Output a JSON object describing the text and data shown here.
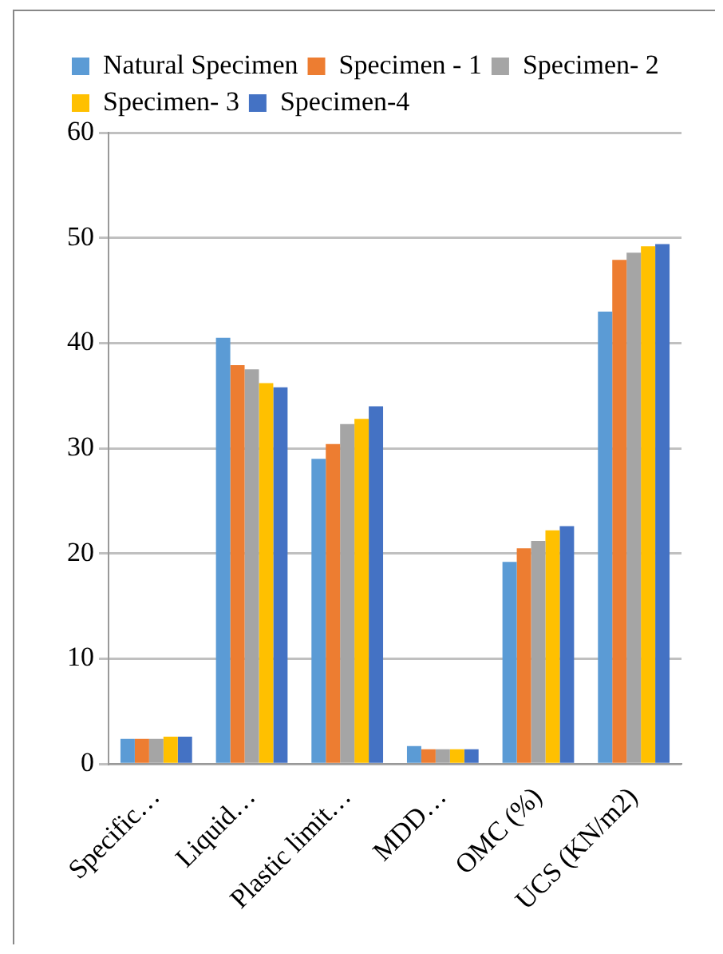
{
  "chart_data": {
    "type": "bar",
    "categories": [
      "Specific…",
      "Liquid…",
      "Plastic limit…",
      "MDD…",
      "OMC (%)",
      "UCS (KN/m2)"
    ],
    "series": [
      {
        "name": "Natural Specimen",
        "color": "#5b9bd5",
        "values": [
          2.4,
          40.5,
          29.0,
          1.7,
          19.2,
          43.0
        ]
      },
      {
        "name": "Specimen - 1",
        "color": "#ed7d31",
        "values": [
          2.4,
          37.9,
          30.4,
          1.4,
          20.5,
          47.9
        ]
      },
      {
        "name": "Specimen- 2",
        "color": "#a5a5a5",
        "values": [
          2.4,
          37.5,
          32.3,
          1.4,
          21.2,
          48.6
        ]
      },
      {
        "name": "Specimen- 3",
        "color": "#ffc000",
        "values": [
          2.6,
          36.2,
          32.8,
          1.4,
          22.2,
          49.2
        ]
      },
      {
        "name": "Specimen-4",
        "color": "#4472c4",
        "values": [
          2.6,
          35.8,
          34.0,
          1.4,
          22.6,
          49.4
        ]
      }
    ],
    "ylim": [
      0,
      60
    ],
    "yticks": [
      0,
      10,
      20,
      30,
      40,
      50,
      60
    ],
    "grid": "y",
    "legend": "top"
  }
}
